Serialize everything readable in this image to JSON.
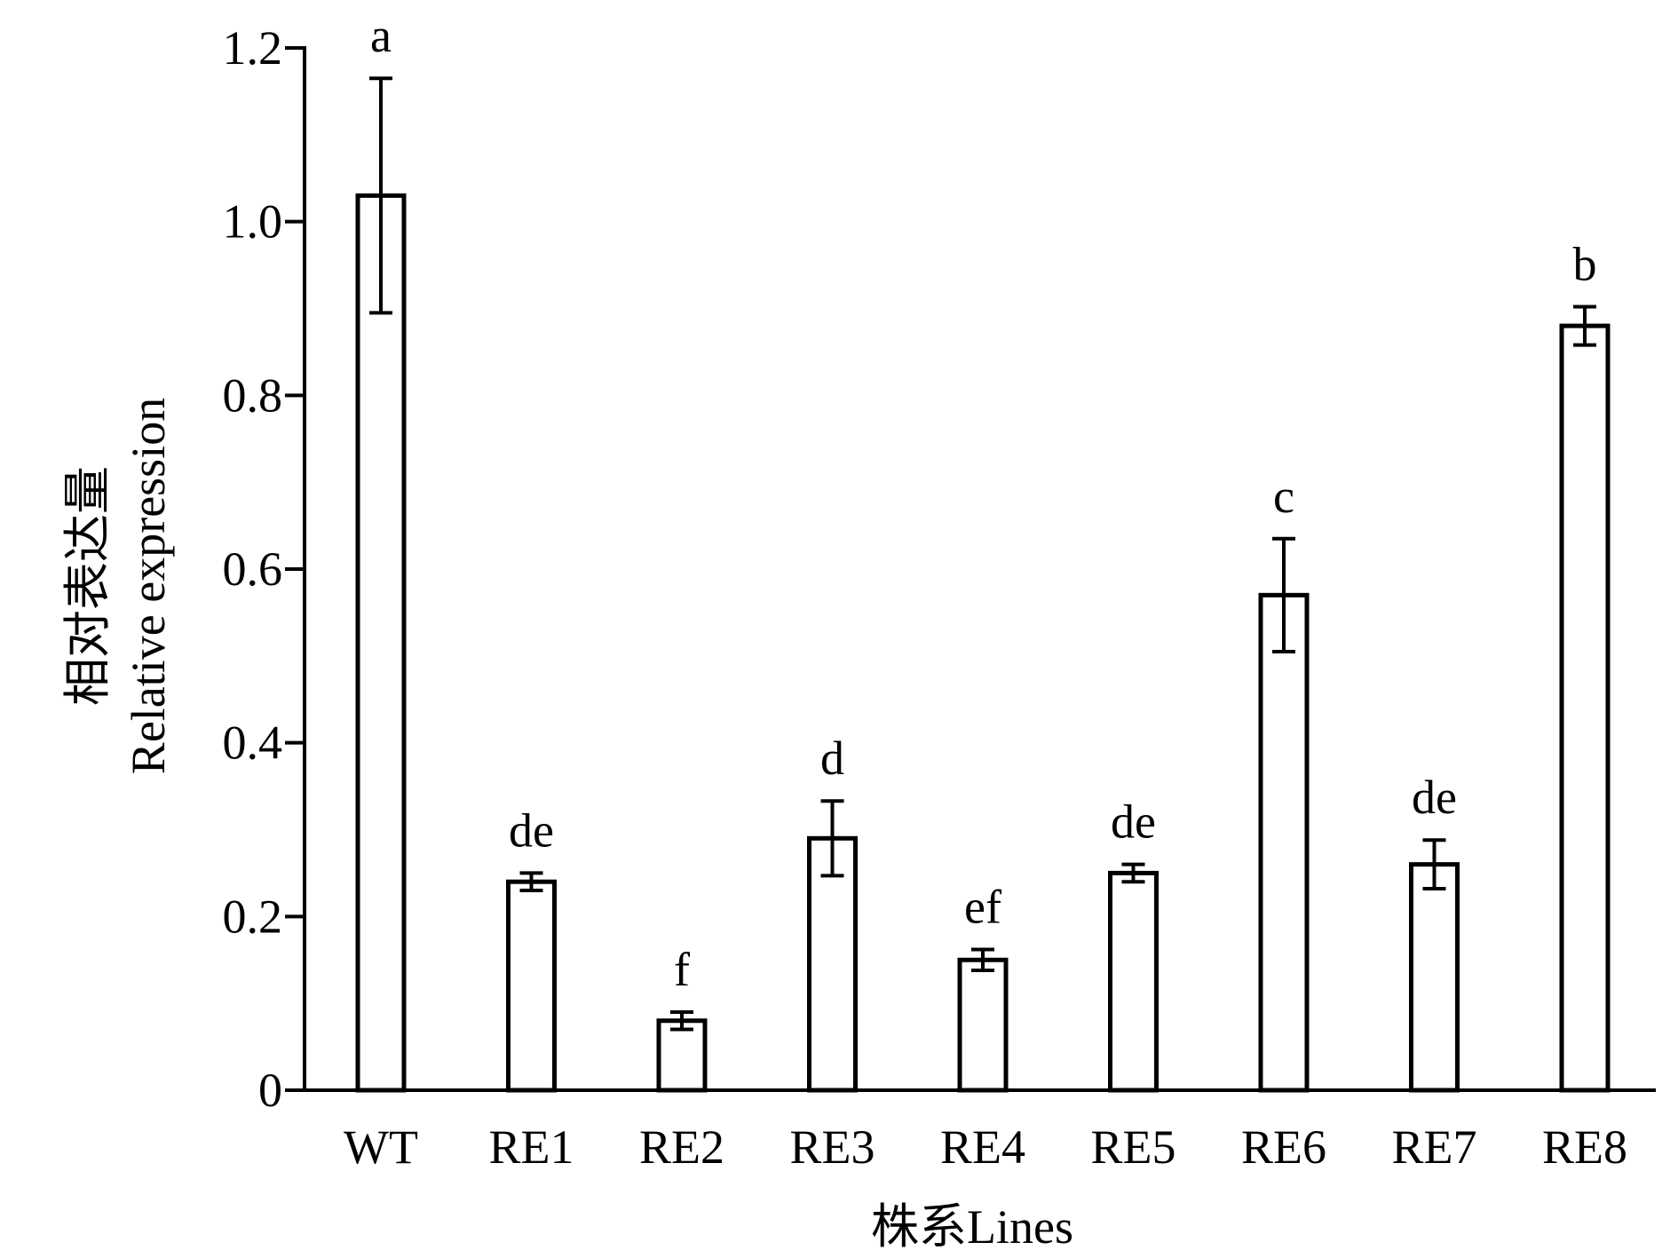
{
  "chart_data": {
    "type": "bar",
    "categories": [
      "WT",
      "RE1",
      "RE2",
      "RE3",
      "RE4",
      "RE5",
      "RE6",
      "RE7",
      "RE8"
    ],
    "values": [
      1.03,
      0.24,
      0.08,
      0.29,
      0.15,
      0.25,
      0.57,
      0.26,
      0.88
    ],
    "errors": [
      0.135,
      0.01,
      0.01,
      0.043,
      0.012,
      0.01,
      0.065,
      0.028,
      0.022
    ],
    "significance": [
      "a",
      "de",
      "f",
      "d",
      "ef",
      "de",
      "c",
      "de",
      "b"
    ],
    "xlabel": "株系Lines",
    "ylabel_line1": "相对表达量",
    "ylabel_line2": "Relative expression",
    "ylim": [
      0,
      1.2
    ],
    "yticks": [
      0,
      0.2,
      0.4,
      0.6,
      0.8,
      1.0,
      1.2
    ],
    "ytick_labels": [
      "0",
      "0.2",
      "0.4",
      "0.6",
      "0.8",
      "1.0",
      "1.2"
    ],
    "grid": false,
    "bar_fill": "#ffffff",
    "bar_stroke": "#000000"
  }
}
